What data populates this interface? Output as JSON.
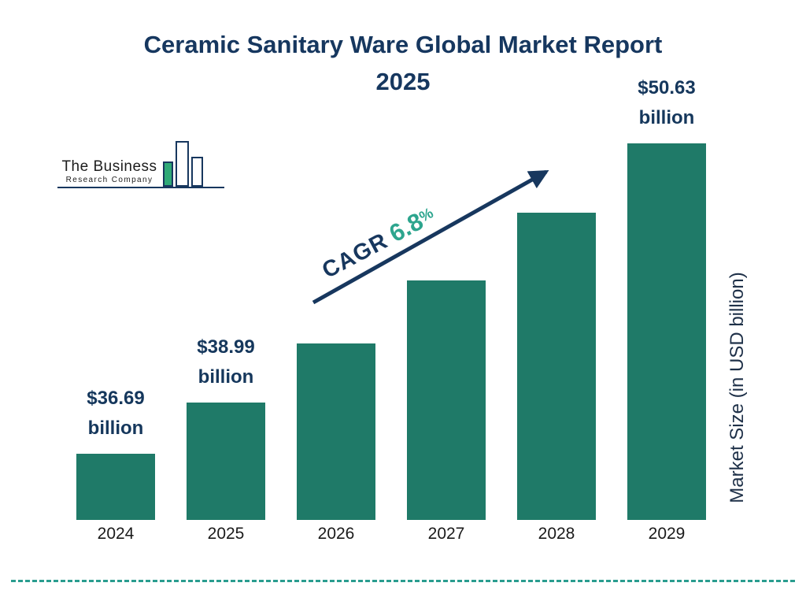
{
  "title": {
    "line1": "Ceramic Sanitary Ware Global Market Report",
    "line2": "2025"
  },
  "logo": {
    "name_line1": "The Business",
    "name_line2": "Research Company"
  },
  "cagr": {
    "label": "CAGR",
    "value": "6.8",
    "percent_sign": "%"
  },
  "y_axis_label": "Market Size (in USD billion)",
  "chart_data": {
    "type": "bar",
    "title": "Ceramic Sanitary Ware Global Market Report 2025",
    "categories": [
      "2024",
      "2025",
      "2026",
      "2027",
      "2028",
      "2029"
    ],
    "values": [
      36.69,
      38.99,
      41.64,
      44.48,
      47.5,
      50.63
    ],
    "unit": "USD billion",
    "xlabel": "",
    "ylabel": "Market Size (in USD billion)",
    "cagr_percent": 6.8,
    "labels": {
      "2024": {
        "value": "$36.69",
        "unit": "billion"
      },
      "2025": {
        "value": "$38.99",
        "unit": "billion"
      },
      "2029": {
        "value": "$50.63",
        "unit": "billion"
      }
    },
    "bar_color": "#1f7a68",
    "accent_navy": "#17375e",
    "accent_green": "#2da58e",
    "baseline_dash_color": "#2a9d8f"
  }
}
